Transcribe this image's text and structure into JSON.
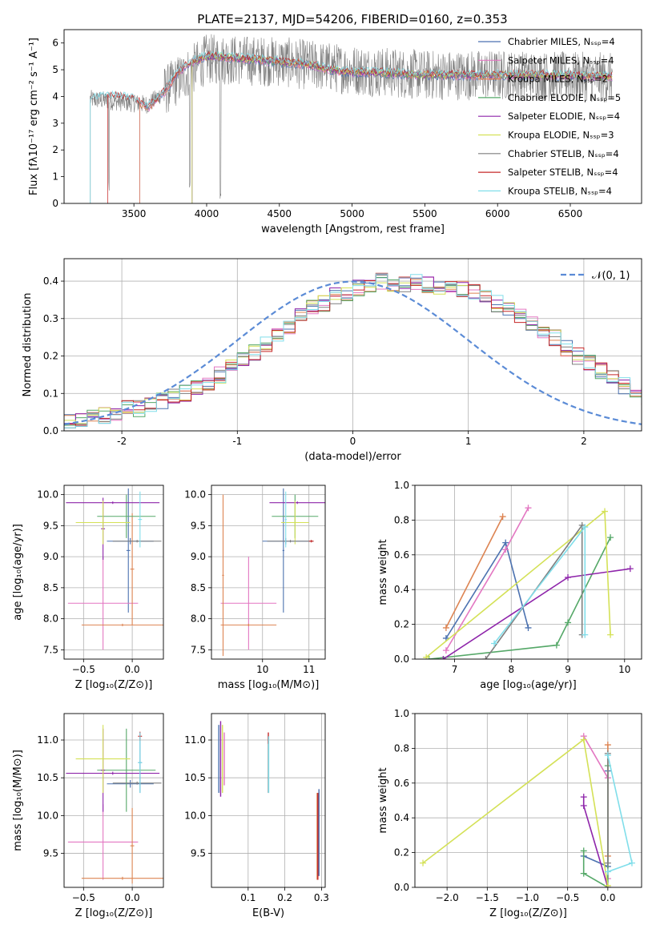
{
  "figure_title": "PLATE=2137, MJD=54206, FIBERID=0160, z=0.353",
  "colors": [
    "#4c72b0",
    "#e377c2",
    "#dd8452",
    "#55a868",
    "#8e24aa",
    "#d4e157",
    "#7f7f7f",
    "#c62828",
    "#80deea"
  ],
  "chart_data": [
    {
      "id": "spectrum",
      "type": "line",
      "xlabel": "wavelength [Angstrom, rest frame]",
      "ylabel": "Flux [fλ10⁻¹⁷ erg cm⁻² s⁻¹ A⁻¹]",
      "xlim": [
        3020,
        6990
      ],
      "ylim": [
        0,
        6.5
      ],
      "xticks": [
        3500,
        4000,
        4500,
        5000,
        5500,
        6000,
        6500
      ],
      "yticks": [
        0,
        1,
        2,
        3,
        4,
        5,
        6
      ],
      "grid": false,
      "legend_position": "top-right",
      "observed": {
        "x_start": 3200,
        "x_end": 6790,
        "description_points": [
          [
            3200,
            3.9
          ],
          [
            3600,
            3.7
          ],
          [
            3800,
            4.6
          ],
          [
            4000,
            5.4
          ],
          [
            4500,
            5.3
          ],
          [
            5000,
            5.0
          ],
          [
            5500,
            4.8
          ],
          [
            6000,
            4.8
          ],
          [
            6790,
            4.7
          ]
        ]
      },
      "models": [
        {
          "name": "Chabrier MILES, Nₛₛₚ=4",
          "start": 3540
        },
        {
          "name": "Salpeter MILES, Nₛₛₚ=4",
          "start": 3540
        },
        {
          "name": "Kroupa MILES, Nₛₛₚ=2",
          "start": 3540
        },
        {
          "name": "Chabrier ELODIE, Nₛₛₚ=5",
          "start": 3900
        },
        {
          "name": "Salpeter ELODIE, Nₛₛₚ=4",
          "start": 3900
        },
        {
          "name": "Kroupa ELODIE, Nₛₛₚ=3",
          "start": 3900
        },
        {
          "name": "Chabrier STELIB, Nₛₛₚ=4",
          "start": 3200
        },
        {
          "name": "Salpeter STELIB, Nₛₛₚ=4",
          "start": 3320
        },
        {
          "name": "Kroupa STELIB, Nₛₛₚ=4",
          "start": 3200
        }
      ],
      "model_points": [
        [
          3200,
          3.9
        ],
        [
          3300,
          4.0
        ],
        [
          3400,
          4.0
        ],
        [
          3500,
          3.9
        ],
        [
          3600,
          3.6
        ],
        [
          3700,
          4.1
        ],
        [
          3800,
          4.9
        ],
        [
          3900,
          5.3
        ],
        [
          4000,
          5.5
        ],
        [
          4100,
          5.5
        ],
        [
          4300,
          5.4
        ],
        [
          4500,
          5.3
        ],
        [
          4700,
          5.2
        ],
        [
          4850,
          5.0
        ],
        [
          5000,
          4.9
        ],
        [
          5200,
          4.9
        ],
        [
          5500,
          4.8
        ],
        [
          5800,
          4.8
        ],
        [
          6000,
          4.8
        ],
        [
          6300,
          4.8
        ],
        [
          6790,
          4.75
        ]
      ]
    },
    {
      "id": "residuals",
      "type": "line",
      "xlabel": "(data-model)/error",
      "ylabel": "Normed distribution",
      "xlim": [
        -2.5,
        2.5
      ],
      "ylim": [
        0,
        0.46
      ],
      "xticks": [
        -2,
        -1,
        0,
        1,
        2
      ],
      "yticks": [
        0.0,
        0.1,
        0.2,
        0.3,
        0.4
      ],
      "grid": true,
      "legend_position": "top-right",
      "legend_label": "𝒩(0, 1)",
      "bin_width": 0.1,
      "bin_start": -2.5,
      "histogram_envelope": [
        0.03,
        0.03,
        0.04,
        0.04,
        0.05,
        0.06,
        0.06,
        0.07,
        0.08,
        0.09,
        0.1,
        0.12,
        0.13,
        0.15,
        0.17,
        0.19,
        0.21,
        0.23,
        0.26,
        0.28,
        0.31,
        0.33,
        0.34,
        0.36,
        0.37,
        0.38,
        0.39,
        0.4,
        0.39,
        0.39,
        0.4,
        0.39,
        0.38,
        0.39,
        0.38,
        0.37,
        0.36,
        0.34,
        0.33,
        0.31,
        0.29,
        0.27,
        0.25,
        0.22,
        0.2,
        0.18,
        0.16,
        0.14,
        0.12,
        0.1,
        0.09,
        0.08,
        0.06,
        0.05,
        0.04,
        0.03,
        0.03,
        0.02,
        0.02,
        0.02
      ]
    },
    {
      "id": "age_vs_Z",
      "type": "scatter",
      "xlabel": "Z [log₁₀(Z/Z⊙)]",
      "ylabel": "age  [log₁₀(age/yr)]",
      "xlim": [
        -0.7,
        0.32
      ],
      "ylim": [
        7.35,
        10.15
      ],
      "xticks": [
        -0.5,
        0.0
      ],
      "xtick_labels": [
        "−0.5",
        "0.0"
      ],
      "yticks": [
        7.5,
        8.0,
        8.5,
        9.0,
        9.5,
        10.0
      ],
      "grid": true,
      "crosses": [
        {
          "c": 0,
          "x": -0.02,
          "y": 9.25,
          "dx": 0.24,
          "dy": 0.05
        },
        {
          "c": 0,
          "x": -0.04,
          "y": 9.1,
          "dx": 0.02,
          "dy": 1.0
        },
        {
          "c": 1,
          "x": -0.3,
          "y": 8.25,
          "dx": 0.36,
          "dy": 0.75
        },
        {
          "c": 2,
          "x": -0.1,
          "y": 7.9,
          "dx": 0.42,
          "dy": 0.02
        },
        {
          "c": 2,
          "x": 0.0,
          "y": 8.8,
          "dx": 0.02,
          "dy": 0.9
        },
        {
          "c": 3,
          "x": -0.06,
          "y": 9.65,
          "dx": 0.3,
          "dy": 0.35
        },
        {
          "c": 4,
          "x": -0.2,
          "y": 9.87,
          "dx": 0.48,
          "dy": 0.02
        },
        {
          "c": 4,
          "x": -0.3,
          "y": 9.45,
          "dx": 0.02,
          "dy": 0.5
        },
        {
          "c": 5,
          "x": -0.3,
          "y": 9.55,
          "dx": 0.28,
          "dy": 0.35
        },
        {
          "c": 6,
          "x": 0.05,
          "y": 9.25,
          "dx": 0.25,
          "dy": 0.02
        },
        {
          "c": 8,
          "x": 0.08,
          "y": 9.6,
          "dx": 0.02,
          "dy": 0.45
        }
      ]
    },
    {
      "id": "age_vs_mass",
      "type": "scatter",
      "xlabel": "mass [log₁₀(M/M⊙)]",
      "xlim": [
        8.9,
        11.35
      ],
      "ylim": [
        7.35,
        10.15
      ],
      "xticks": [
        10,
        11
      ],
      "yticks": [
        7.5,
        8.0,
        8.5,
        9.0,
        9.5,
        10.0
      ],
      "grid": true,
      "crosses": [
        {
          "c": 0,
          "x": 10.5,
          "y": 9.25,
          "dx": 0.5,
          "dy": 0.05
        },
        {
          "c": 0,
          "x": 10.45,
          "y": 9.1,
          "dx": 0.02,
          "dy": 1.0
        },
        {
          "c": 1,
          "x": 9.7,
          "y": 8.25,
          "dx": 0.6,
          "dy": 0.75
        },
        {
          "c": 2,
          "x": 9.7,
          "y": 7.9,
          "dx": 0.6,
          "dy": 0.02
        },
        {
          "c": 2,
          "x": 9.15,
          "y": 8.7,
          "dx": 0.02,
          "dy": 1.3
        },
        {
          "c": 3,
          "x": 10.7,
          "y": 9.65,
          "dx": 0.5,
          "dy": 0.35
        },
        {
          "c": 4,
          "x": 10.75,
          "y": 9.87,
          "dx": 0.6,
          "dy": 0.02
        },
        {
          "c": 5,
          "x": 10.7,
          "y": 9.55,
          "dx": 0.3,
          "dy": 0.35
        },
        {
          "c": 6,
          "x": 10.6,
          "y": 9.25,
          "dx": 0.5,
          "dy": 0.02
        },
        {
          "c": 7,
          "x": 11.05,
          "y": 9.25,
          "dx": 0.05,
          "dy": 0.02
        },
        {
          "c": 8,
          "x": 10.5,
          "y": 9.6,
          "dx": 0.02,
          "dy": 0.45
        }
      ]
    },
    {
      "id": "weight_vs_age",
      "type": "line",
      "xlabel": "age  [log₁₀(age/yr)]",
      "ylabel": "mass weight",
      "xlim": [
        6.3,
        10.3
      ],
      "ylim": [
        0,
        1.0
      ],
      "xticks": [
        7,
        8,
        9,
        10
      ],
      "yticks": [
        0.0,
        0.2,
        0.4,
        0.6,
        0.8,
        1.0
      ],
      "grid": true,
      "series": [
        {
          "c": 0,
          "points": [
            [
              6.85,
              0.12
            ],
            [
              7.9,
              0.67
            ],
            [
              8.3,
              0.18
            ]
          ]
        },
        {
          "c": 1,
          "points": [
            [
              6.85,
              0.05
            ],
            [
              7.9,
              0.63
            ],
            [
              8.3,
              0.87
            ]
          ]
        },
        {
          "c": 2,
          "points": [
            [
              6.85,
              0.18
            ],
            [
              7.85,
              0.82
            ]
          ]
        },
        {
          "c": 3,
          "points": [
            [
              6.55,
              0.0
            ],
            [
              8.8,
              0.08
            ],
            [
              9.0,
              0.21
            ],
            [
              9.75,
              0.7
            ]
          ]
        },
        {
          "c": 4,
          "points": [
            [
              6.8,
              0.0
            ],
            [
              9.0,
              0.47
            ],
            [
              10.1,
              0.52
            ]
          ]
        },
        {
          "c": 5,
          "points": [
            [
              6.5,
              0.01
            ],
            [
              9.65,
              0.85
            ],
            [
              9.75,
              0.14
            ]
          ]
        },
        {
          "c": 6,
          "points": [
            [
              7.55,
              0.0
            ],
            [
              9.25,
              0.77
            ],
            [
              9.25,
              0.14
            ]
          ]
        },
        {
          "c": 8,
          "points": [
            [
              7.7,
              0.09
            ],
            [
              9.3,
              0.76
            ],
            [
              9.3,
              0.14
            ]
          ]
        }
      ]
    },
    {
      "id": "mass_vs_Z",
      "type": "scatter",
      "xlabel": "Z [log₁₀(Z/Z⊙)]",
      "ylabel": "mass [log₁₀(M/M⊙)]",
      "xlim": [
        -0.7,
        0.32
      ],
      "ylim": [
        9.05,
        11.35
      ],
      "xticks": [
        -0.5,
        0.0
      ],
      "xtick_labels": [
        "−0.5",
        "0.0"
      ],
      "yticks": [
        9.5,
        10.0,
        10.5,
        11.0
      ],
      "grid": true,
      "crosses": [
        {
          "c": 0,
          "x": -0.02,
          "y": 10.42,
          "dx": 0.24,
          "dy": 0.05
        },
        {
          "c": 0,
          "x": 0.08,
          "y": 10.7,
          "dx": 0.02,
          "dy": 0.4
        },
        {
          "c": 1,
          "x": -0.3,
          "y": 9.65,
          "dx": 0.36,
          "dy": 0.5
        },
        {
          "c": 2,
          "x": -0.1,
          "y": 9.17,
          "dx": 0.42,
          "dy": 0.02
        },
        {
          "c": 2,
          "x": 0.0,
          "y": 9.6,
          "dx": 0.02,
          "dy": 0.5
        },
        {
          "c": 3,
          "x": -0.06,
          "y": 10.6,
          "dx": 0.3,
          "dy": 0.55
        },
        {
          "c": 4,
          "x": -0.2,
          "y": 10.56,
          "dx": 0.48,
          "dy": 0.02
        },
        {
          "c": 4,
          "x": -0.3,
          "y": 10.6,
          "dx": 0.02,
          "dy": 0.55
        },
        {
          "c": 5,
          "x": -0.3,
          "y": 10.75,
          "dx": 0.28,
          "dy": 0.45
        },
        {
          "c": 6,
          "x": 0.05,
          "y": 10.43,
          "dx": 0.25,
          "dy": 0.02
        },
        {
          "c": 7,
          "x": 0.08,
          "y": 11.05,
          "dx": 0.02,
          "dy": 0.06
        },
        {
          "c": 8,
          "x": 0.08,
          "y": 10.7,
          "dx": 0.02,
          "dy": 0.4
        }
      ]
    },
    {
      "id": "mass_vs_ebv",
      "type": "scatter",
      "xlabel": "E(B-V)",
      "xlim": [
        0.0,
        0.31
      ],
      "ylim": [
        9.05,
        11.35
      ],
      "xticks": [
        0.1,
        0.2,
        0.3
      ],
      "yticks": [
        9.5,
        10.0,
        10.5,
        11.0
      ],
      "grid": true,
      "segments": [
        {
          "c": 0,
          "x": 0.02,
          "y1": 10.3,
          "y2": 11.2
        },
        {
          "c": 4,
          "x": 0.025,
          "y1": 10.25,
          "y2": 11.25
        },
        {
          "c": 5,
          "x": 0.03,
          "y1": 10.3,
          "y2": 11.2
        },
        {
          "c": 1,
          "x": 0.035,
          "y1": 10.4,
          "y2": 11.1
        },
        {
          "c": 6,
          "x": 0.155,
          "y1": 10.3,
          "y2": 11.05
        },
        {
          "c": 7,
          "x": 0.155,
          "y1": 10.95,
          "y2": 11.1
        },
        {
          "c": 8,
          "x": 0.156,
          "y1": 10.3,
          "y2": 11.05
        },
        {
          "c": 2,
          "x": 0.288,
          "y1": 9.15,
          "y2": 10.3
        },
        {
          "c": 7,
          "x": 0.29,
          "y1": 9.15,
          "y2": 10.3
        },
        {
          "c": 0,
          "x": 0.293,
          "y1": 9.2,
          "y2": 10.35
        }
      ]
    },
    {
      "id": "weight_vs_Z",
      "type": "line",
      "xlabel": "Z [log₁₀(Z/Z⊙)]",
      "ylabel": "mass weight",
      "xlim": [
        -2.4,
        0.42
      ],
      "ylim": [
        0,
        1.0
      ],
      "xticks": [
        -2.0,
        -1.5,
        -1.0,
        -0.5,
        0.0
      ],
      "xtick_labels": [
        "−2.0",
        "−1.5",
        "−1.0",
        "−0.5",
        "0.0"
      ],
      "yticks": [
        0.0,
        0.2,
        0.4,
        0.6,
        0.8,
        1.0
      ],
      "grid": true,
      "series": [
        {
          "c": 0,
          "points": [
            [
              -0.3,
              0.18
            ],
            [
              0.0,
              0.12
            ],
            [
              0.0,
              0.67
            ]
          ]
        },
        {
          "c": 1,
          "points": [
            [
              -0.3,
              0.87
            ],
            [
              0.0,
              0.63
            ],
            [
              0.0,
              0.05
            ]
          ]
        },
        {
          "c": 2,
          "points": [
            [
              0.0,
              0.82
            ],
            [
              0.0,
              0.18
            ]
          ]
        },
        {
          "c": 3,
          "points": [
            [
              -0.3,
              0.21
            ],
            [
              -0.3,
              0.08
            ],
            [
              0.0,
              0.0
            ],
            [
              0.0,
              0.7
            ]
          ]
        },
        {
          "c": 4,
          "points": [
            [
              -0.3,
              0.52
            ],
            [
              -0.3,
              0.47
            ],
            [
              0.0,
              0.0
            ]
          ]
        },
        {
          "c": 5,
          "points": [
            [
              -2.3,
              0.14
            ],
            [
              -0.3,
              0.85
            ],
            [
              0.0,
              0.01
            ]
          ]
        },
        {
          "c": 6,
          "points": [
            [
              0.0,
              0.77
            ],
            [
              0.0,
              0.14
            ]
          ]
        },
        {
          "c": 8,
          "points": [
            [
              0.0,
              0.09
            ],
            [
              0.3,
              0.14
            ],
            [
              0.0,
              0.76
            ]
          ]
        }
      ]
    }
  ]
}
